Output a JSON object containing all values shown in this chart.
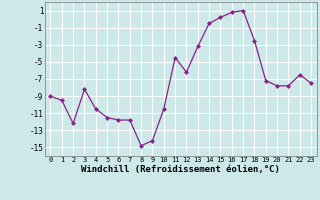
{
  "x": [
    0,
    1,
    2,
    3,
    4,
    5,
    6,
    7,
    8,
    9,
    10,
    11,
    12,
    13,
    14,
    15,
    16,
    17,
    18,
    19,
    20,
    21,
    22,
    23
  ],
  "y": [
    -9.0,
    -9.5,
    -12.2,
    -8.2,
    -10.5,
    -11.5,
    -11.8,
    -11.8,
    -14.8,
    -14.2,
    -10.5,
    -4.5,
    -6.2,
    -3.2,
    -0.5,
    0.2,
    0.8,
    1.0,
    -2.5,
    -7.2,
    -7.8,
    -7.8,
    -6.5,
    -7.5
  ],
  "line_color": "#882288",
  "marker": "D",
  "markersize": 2.0,
  "linewidth": 0.9,
  "bg_color": "#cce8e8",
  "grid_color": "#ffffff",
  "xlabel": "Windchill (Refroidissement éolien,°C)",
  "xlabel_fontsize": 6.5,
  "yticks": [
    1,
    -1,
    -3,
    -5,
    -7,
    -9,
    -11,
    -13,
    -15
  ],
  "xticks": [
    0,
    1,
    2,
    3,
    4,
    5,
    6,
    7,
    8,
    9,
    10,
    11,
    12,
    13,
    14,
    15,
    16,
    17,
    18,
    19,
    20,
    21,
    22,
    23
  ],
  "ylim": [
    -16,
    2
  ],
  "xlim": [
    -0.5,
    23.5
  ],
  "tick_fontsize": 5.0,
  "ylabel_tick_fontsize": 5.5
}
